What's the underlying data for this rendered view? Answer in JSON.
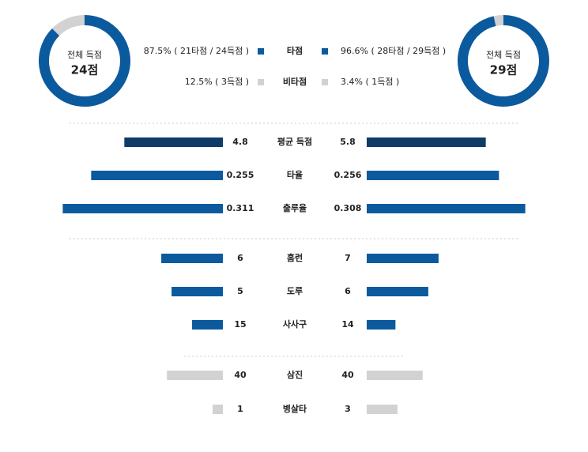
{
  "donuts": [
    {
      "label": "전체 득점",
      "total": "24점",
      "values": [
        87.5,
        12.5
      ]
    },
    {
      "label": "전체 득점",
      "total": "29점",
      "values": [
        96.6,
        3.4
      ]
    }
  ],
  "legend": [
    {
      "name": "타점",
      "color": "#0b5a9e",
      "left": "87.5% ( 21타점 / 24득점 )",
      "right": "96.6% ( 28타점 / 29득점 )"
    },
    {
      "name": "비타점",
      "color": "#d2d2d2",
      "left": "12.5% ( 3득점 )",
      "right": "3.4% ( 1득점 )"
    }
  ],
  "groups": [
    {
      "rows": [
        {
          "name": "평균 득점",
          "left": 4.8,
          "right": 5.8,
          "color": "#0e3b68",
          "xlim": [
            0,
            7.7
          ]
        },
        {
          "name": "타율",
          "left": 0.255,
          "right": 0.256,
          "color": "#0b5a9e",
          "xlim": [
            0,
            0.306
          ]
        },
        {
          "name": "출루율",
          "left": 0.311,
          "right": 0.308,
          "color": "#0b5a9e",
          "xlim": [
            0,
            0.307
          ]
        }
      ]
    },
    {
      "rows": [
        {
          "name": "홈런",
          "left": 6,
          "right": 7,
          "color": "#0b5a9e",
          "xlim": [
            0,
            15.4
          ]
        },
        {
          "name": "도루",
          "left": 5,
          "right": 6,
          "color": "#0b5a9e",
          "xlim": [
            0,
            15.4
          ]
        },
        {
          "name": "사사구",
          "left": 15,
          "right": 14,
          "color": "#0b5a9e",
          "xlim": [
            0,
            77
          ]
        }
      ]
    },
    {
      "rows": [
        {
          "name": "삼진",
          "left": 40,
          "right": 40,
          "color": "#d2d2d2",
          "xlim": [
            0,
            113
          ]
        },
        {
          "name": "병살타",
          "left": 1,
          "right": 3,
          "color": "#d2d2d2",
          "xlim": [
            0,
            15.4
          ]
        }
      ]
    }
  ]
}
